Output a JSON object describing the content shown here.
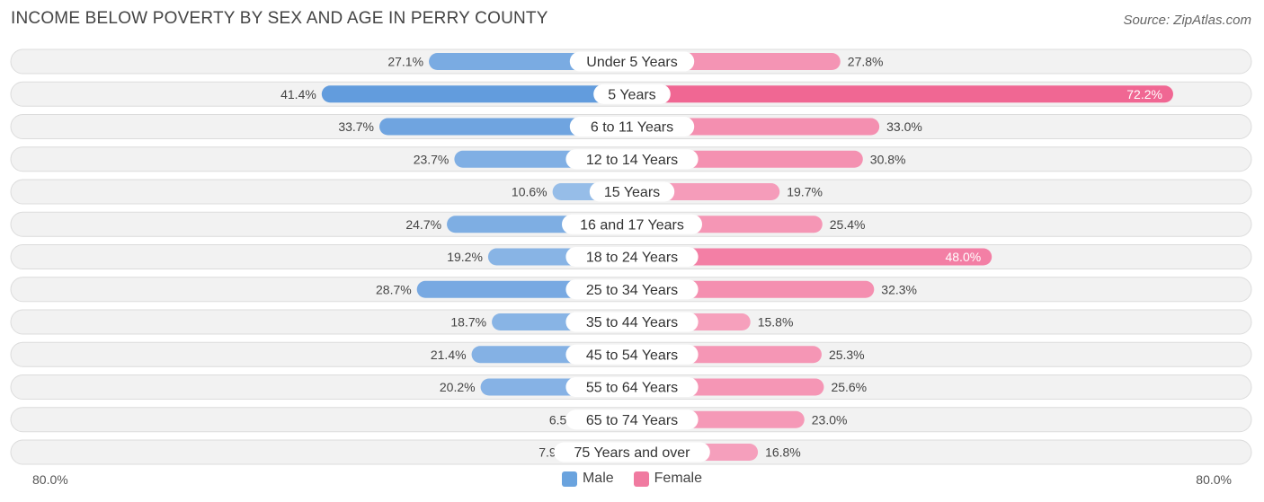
{
  "header": {
    "title": "INCOME BELOW POVERTY BY SEX AND AGE IN PERRY COUNTY",
    "source": "Source: ZipAtlas.com"
  },
  "axis": {
    "left_label": "80.0%",
    "right_label": "80.0%"
  },
  "legend": {
    "male_label": "Male",
    "female_label": "Female",
    "male_color": "#6aa3de",
    "female_color": "#f07aa0"
  },
  "chart_data": {
    "type": "bar",
    "orientation": "diverging-horizontal",
    "title": "INCOME BELOW POVERTY BY SEX AND AGE IN PERRY COUNTY",
    "xlim": [
      -80,
      80
    ],
    "categories": [
      "Under 5 Years",
      "5 Years",
      "6 to 11 Years",
      "12 to 14 Years",
      "15 Years",
      "16 and 17 Years",
      "18 to 24 Years",
      "25 to 34 Years",
      "35 to 44 Years",
      "45 to 54 Years",
      "55 to 64 Years",
      "65 to 74 Years",
      "75 Years and over"
    ],
    "series": [
      {
        "name": "Male",
        "values": [
          27.1,
          41.4,
          33.7,
          23.7,
          10.6,
          24.7,
          19.2,
          28.7,
          18.7,
          21.4,
          20.2,
          6.5,
          7.9
        ],
        "labels": [
          "27.1%",
          "41.4%",
          "33.7%",
          "23.7%",
          "10.6%",
          "24.7%",
          "19.2%",
          "28.7%",
          "18.7%",
          "21.4%",
          "20.2%",
          "6.5%",
          "7.9%"
        ]
      },
      {
        "name": "Female",
        "values": [
          27.8,
          72.2,
          33.0,
          30.8,
          19.7,
          25.4,
          48.0,
          32.3,
          15.8,
          25.3,
          25.6,
          23.0,
          16.8
        ],
        "labels": [
          "27.8%",
          "72.2%",
          "33.0%",
          "30.8%",
          "19.7%",
          "25.4%",
          "48.0%",
          "32.3%",
          "15.8%",
          "25.3%",
          "25.6%",
          "23.0%",
          "16.8%"
        ]
      }
    ]
  }
}
